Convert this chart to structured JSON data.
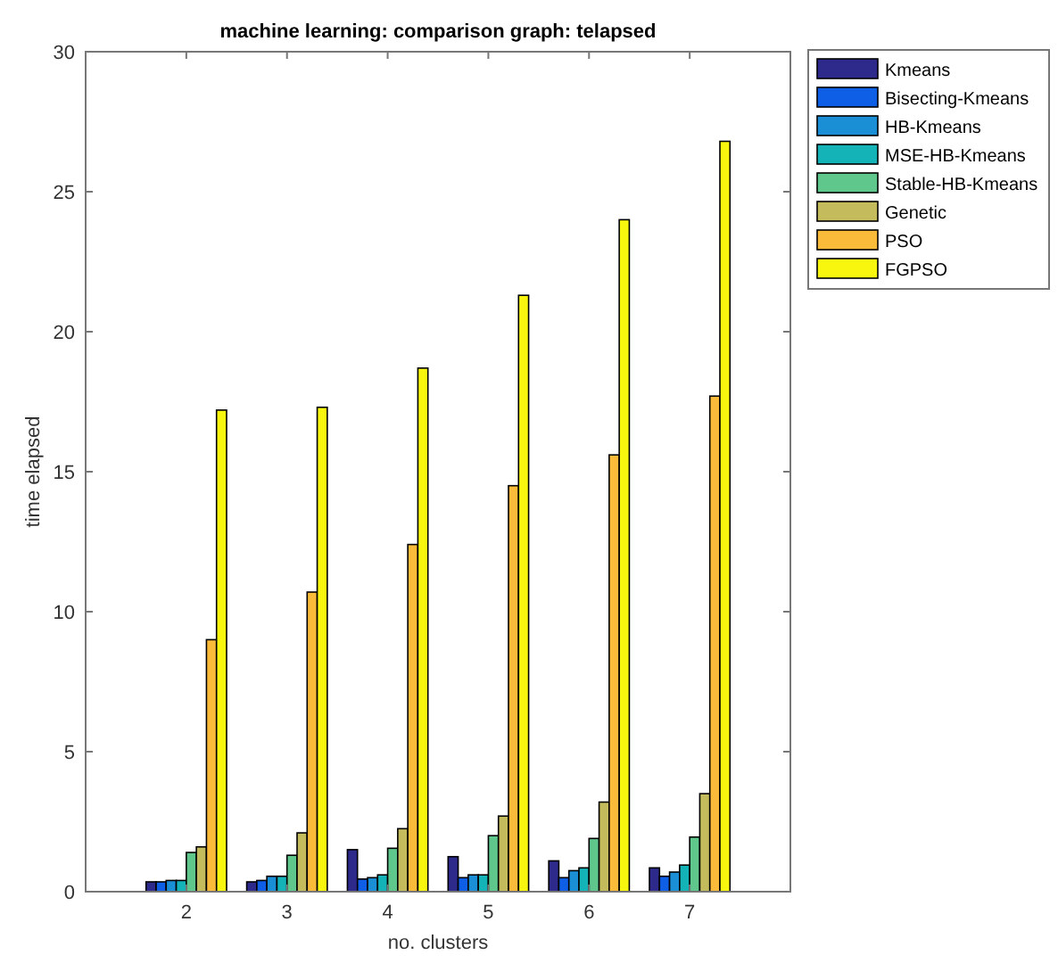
{
  "chart_data": {
    "type": "bar",
    "title": "machine learning: comparison graph: telapsed",
    "xlabel": "no. clusters",
    "ylabel": "time elapsed",
    "x": [
      2,
      3,
      4,
      5,
      6,
      7
    ],
    "xlim": [
      1,
      8
    ],
    "xticks": [
      2,
      3,
      4,
      5,
      6,
      7
    ],
    "ylim": [
      0,
      30
    ],
    "yticks": [
      0,
      5,
      10,
      15,
      20,
      25,
      30
    ],
    "grid": false,
    "legend": "top right",
    "series": [
      {
        "name": "Kmeans",
        "color": "#2e2a8c",
        "values": [
          0.35,
          0.35,
          1.5,
          1.25,
          1.1,
          0.85
        ]
      },
      {
        "name": "Bisecting-Kmeans",
        "color": "#0f5fe6",
        "values": [
          0.35,
          0.4,
          0.45,
          0.5,
          0.5,
          0.55
        ]
      },
      {
        "name": "HB-Kmeans",
        "color": "#1a8fd6",
        "values": [
          0.4,
          0.55,
          0.5,
          0.6,
          0.75,
          0.7
        ]
      },
      {
        "name": "MSE-HB-Kmeans",
        "color": "#13b3b8",
        "values": [
          0.4,
          0.55,
          0.6,
          0.6,
          0.85,
          0.95
        ]
      },
      {
        "name": "Stable-HB-Kmeans",
        "color": "#5fc78c",
        "values": [
          1.4,
          1.3,
          1.55,
          2.0,
          1.9,
          1.95
        ]
      },
      {
        "name": "Genetic",
        "color": "#c4bb5c",
        "values": [
          1.6,
          2.1,
          2.25,
          2.7,
          3.2,
          3.5
        ]
      },
      {
        "name": "PSO",
        "color": "#fbbb3a",
        "values": [
          9.0,
          10.7,
          12.4,
          14.5,
          15.6,
          17.7
        ]
      },
      {
        "name": "FGPSO",
        "color": "#f8f50f",
        "values": [
          17.2,
          17.3,
          18.7,
          21.3,
          24.0,
          26.8
        ]
      }
    ]
  }
}
